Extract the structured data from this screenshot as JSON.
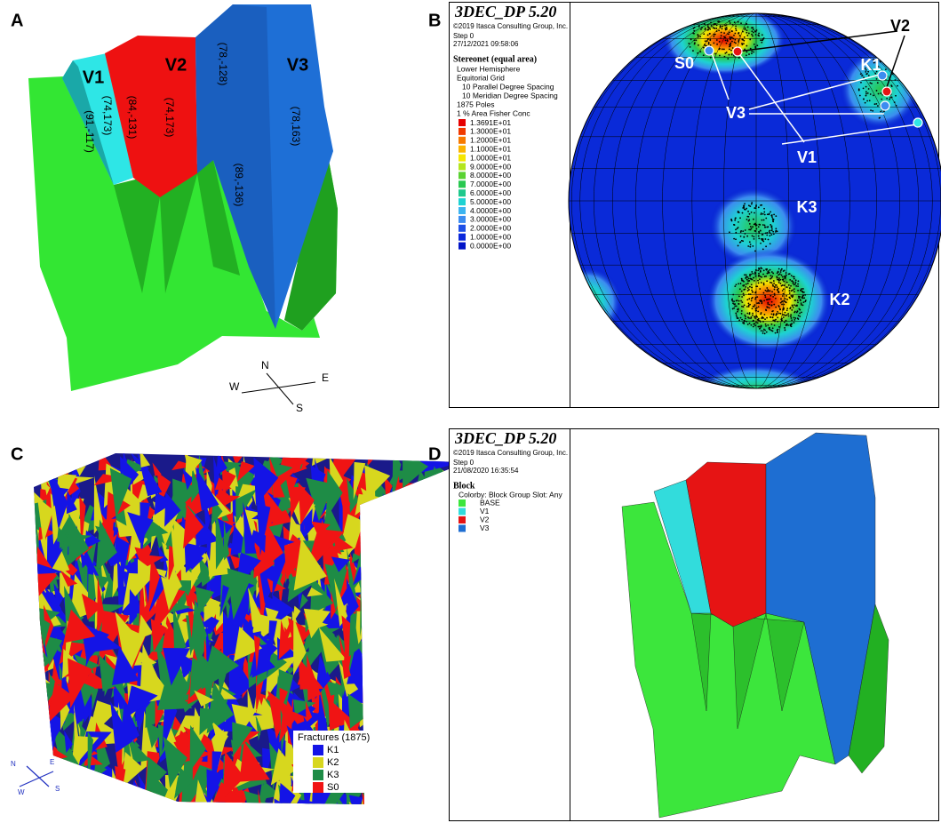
{
  "panels": {
    "a": {
      "label": "A",
      "blocks": [
        "V1",
        "V2",
        "V3"
      ],
      "orientations": [
        "(91,-117)",
        "(74,173)",
        "(84,-131)",
        "(74,173)",
        "(78,-128)",
        "(78,163)",
        "(89,-136)"
      ],
      "compass": {
        "n": "N",
        "e": "E",
        "s": "S",
        "w": "W"
      }
    },
    "b": {
      "label": "B",
      "software": "3DEC_DP 5.20",
      "copyright": "©2019 Itasca Consulting Group, Inc.",
      "step": "Step 0",
      "date": "27/12/2021 09:58:06",
      "plot_title": "Stereonet (equal area)",
      "plot_lines": [
        "Lower Hemisphere",
        "Equitorial Grid",
        "10 Parallel Degree Spacing",
        "10 Meridian Degree Spacing",
        "1875 Poles",
        "1 % Area Fisher Conc"
      ],
      "legend": [
        {
          "label": "1.3691E+01",
          "color": "#e60000"
        },
        {
          "label": "1.3000E+01",
          "color": "#f03a00"
        },
        {
          "label": "1.2000E+01",
          "color": "#f77a00"
        },
        {
          "label": "1.1000E+01",
          "color": "#fbb400"
        },
        {
          "label": "1.0000E+01",
          "color": "#f5e600"
        },
        {
          "label": "9.0000E+00",
          "color": "#b4e61e"
        },
        {
          "label": "8.0000E+00",
          "color": "#5ad232"
        },
        {
          "label": "7.0000E+00",
          "color": "#28c850"
        },
        {
          "label": "6.0000E+00",
          "color": "#1ec88c"
        },
        {
          "label": "5.0000E+00",
          "color": "#1ed2d2"
        },
        {
          "label": "4.0000E+00",
          "color": "#3cb4f0"
        },
        {
          "label": "3.0000E+00",
          "color": "#3c8cf0"
        },
        {
          "label": "2.0000E+00",
          "color": "#1e50e6"
        },
        {
          "label": "1.0000E+00",
          "color": "#0a28dc"
        },
        {
          "label": "0.0000E+00",
          "color": "#0014c8"
        }
      ],
      "set_labels": {
        "s0": "S0",
        "v2": "V2",
        "k1": "K1",
        "v3": "V3",
        "v1": "V1",
        "k3": "K3",
        "k2": "K2"
      }
    },
    "c": {
      "label": "C",
      "legend_title": "Fractures (1875)",
      "legend": [
        {
          "label": "K1",
          "color": "#1414e6"
        },
        {
          "label": "K2",
          "color": "#d7d71e"
        },
        {
          "label": "K3",
          "color": "#1e8c46"
        },
        {
          "label": "S0",
          "color": "#f01414"
        }
      ],
      "compass": {
        "n": "N",
        "e": "E",
        "s": "S",
        "w": "W"
      }
    },
    "d": {
      "label": "D",
      "software": "3DEC_DP 5.20",
      "copyright": "©2019 Itasca Consulting Group, Inc.",
      "step": "Step 0",
      "date": "21/08/2020 16:35:54",
      "plot_title": "Block",
      "colorby": "Colorby: Block Group Slot: Any",
      "legend": [
        {
          "label": "BASE",
          "color": "#3ce63c"
        },
        {
          "label": "V1",
          "color": "#32dcdc"
        },
        {
          "label": "V2",
          "color": "#e61414"
        },
        {
          "label": "V3",
          "color": "#1e6ed2"
        }
      ]
    }
  }
}
